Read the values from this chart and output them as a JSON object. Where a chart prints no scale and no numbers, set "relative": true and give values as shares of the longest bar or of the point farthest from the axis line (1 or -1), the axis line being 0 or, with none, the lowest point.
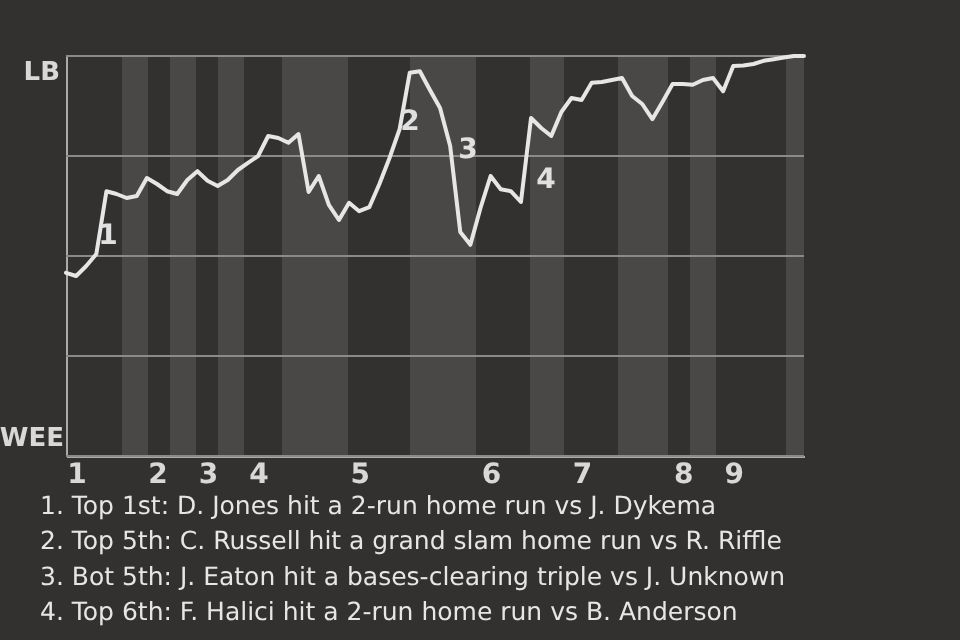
{
  "chart_data": {
    "type": "line",
    "relative": true,
    "categories": [
      null,
      "1",
      null,
      null,
      null,
      null,
      null,
      null,
      null,
      "2",
      null,
      null,
      null,
      null,
      "3",
      null,
      null,
      null,
      null,
      "4",
      null,
      null,
      null,
      null,
      null,
      null,
      null,
      null,
      null,
      "5",
      null,
      null,
      null,
      null,
      null,
      null,
      null,
      null,
      null,
      null,
      null,
      null,
      "6",
      null,
      null,
      null,
      null,
      null,
      null,
      null,
      null,
      "7",
      null,
      null,
      null,
      null,
      null,
      null,
      null,
      null,
      null,
      "8",
      null,
      null,
      null,
      null,
      "9",
      null,
      null,
      null,
      null,
      null,
      null,
      null
    ],
    "series": [
      {
        "color": "#e6e6e6",
        "values": [
          0.458,
          0.45,
          0.475,
          0.505,
          0.662,
          0.655,
          0.645,
          0.65,
          0.695,
          0.68,
          0.662,
          0.655,
          0.69,
          0.712,
          0.688,
          0.675,
          0.69,
          0.715,
          0.733,
          0.75,
          0.8,
          0.795,
          0.783,
          0.805,
          0.66,
          0.7,
          0.628,
          0.59,
          0.633,
          0.612,
          0.622,
          0.68,
          0.745,
          0.817,
          0.958,
          0.962,
          0.915,
          0.87,
          0.775,
          0.56,
          0.528,
          0.62,
          0.7,
          0.667,
          0.662,
          0.635,
          0.845,
          0.82,
          0.8,
          0.86,
          0.895,
          0.89,
          0.933,
          0.935,
          0.94,
          0.945,
          0.9,
          0.88,
          0.842,
          0.885,
          0.93,
          0.93,
          0.928,
          0.94,
          0.945,
          0.912,
          0.975,
          0.976,
          0.98,
          0.988,
          0.992,
          0.996,
          1,
          1
        ]
      }
    ],
    "grid": "y",
    "marker": "none",
    "line_style": "solid",
    "annotations": [
      "LB",
      "WEE",
      "1",
      "2",
      "3",
      "4",
      "1. Top 1st: D. Jones hit a 2-run home run vs J. Dykema",
      "2. Top 5th: C. Russell hit a grand slam home run vs R. Riffle",
      "3. Bot 5th: J. Eaton hit a bases-clearing triple vs J. Unknown",
      "4. Top 6th: F. Halici hit a 2-run home run vs B. Anderson"
    ]
  }
}
